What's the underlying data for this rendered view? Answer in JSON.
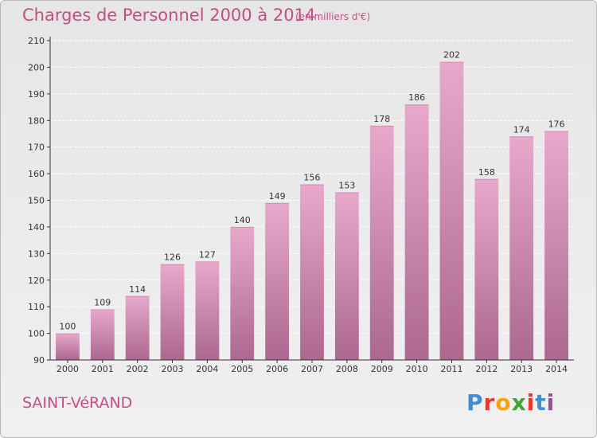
{
  "header": {
    "title": "Charges de Personnel 2000 à 2014",
    "subtitle": "(en milliers d'€)"
  },
  "footer": {
    "commune": "SAINT-VéRAND",
    "brand": "Proxiti",
    "brand_colors": [
      "#3e8fd6",
      "#e8372d",
      "#f4a312",
      "#43a539",
      "#e8372d",
      "#3e8fd6",
      "#9b4aa0"
    ]
  },
  "colors": {
    "title": "#c44d84",
    "bar_top": "#e8a8cc",
    "bar_bottom": "#ac6890",
    "axis": "#333333"
  },
  "chart_data": {
    "type": "bar",
    "title": "Charges de Personnel 2000 à 2014",
    "subtitle": "(en milliers d'€)",
    "categories": [
      "2000",
      "2001",
      "2002",
      "2003",
      "2004",
      "2005",
      "2006",
      "2007",
      "2008",
      "2009",
      "2010",
      "2011",
      "2012",
      "2013",
      "2014"
    ],
    "values": [
      100,
      109,
      114,
      126,
      127,
      140,
      149,
      156,
      153,
      178,
      186,
      202,
      158,
      174,
      176
    ],
    "ylim": [
      90,
      210
    ],
    "yticks": [
      90,
      100,
      110,
      120,
      130,
      140,
      150,
      160,
      170,
      180,
      190,
      200,
      210
    ],
    "grid": true,
    "legend": "none"
  }
}
